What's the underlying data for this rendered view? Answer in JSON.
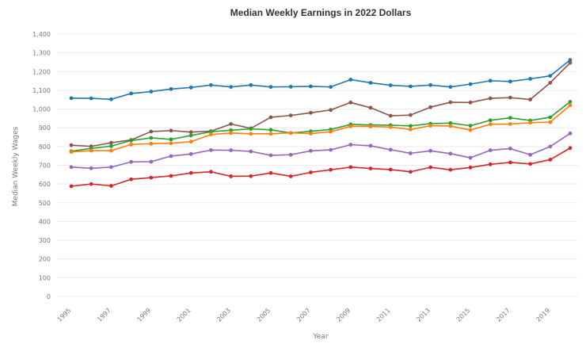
{
  "chart_data": {
    "type": "line",
    "title": "Median Weekly Earnings in 2022 Dollars",
    "xlabel": "Year",
    "ylabel": "Median Weekly Wages",
    "ylim": [
      0,
      1400
    ],
    "yticks": [
      0,
      100,
      200,
      300,
      400,
      500,
      600,
      700,
      800,
      900,
      1000,
      1100,
      1200,
      1300,
      1400
    ],
    "ytick_labels": [
      "0",
      "100",
      "200",
      "300",
      "400",
      "500",
      "600",
      "700",
      "800",
      "900",
      "1,000",
      "1,100",
      "1,200",
      "1,300",
      "1,400"
    ],
    "xlim": [
      1995,
      2020
    ],
    "xticks": [
      1995,
      1997,
      1999,
      2001,
      2003,
      2005,
      2007,
      2009,
      2011,
      2013,
      2015,
      2017,
      2019
    ],
    "grid": true,
    "legend": "none",
    "x": [
      1995,
      1996,
      1997,
      1998,
      1999,
      2000,
      2001,
      2002,
      2003,
      2004,
      2005,
      2006,
      2007,
      2008,
      2009,
      2010,
      2011,
      2012,
      2013,
      2014,
      2015,
      2016,
      2017,
      2018,
      2019,
      2020
    ],
    "series": [
      {
        "color": "#1f77b4",
        "values": [
          1058,
          1057,
          1052,
          1083,
          1093,
          1107,
          1115,
          1128,
          1118,
          1128,
          1118,
          1119,
          1121,
          1118,
          1157,
          1140,
          1127,
          1121,
          1128,
          1118,
          1133,
          1151,
          1147,
          1161,
          1177,
          1262
        ]
      },
      {
        "color": "#8c564b",
        "values": [
          807,
          801,
          820,
          835,
          880,
          885,
          877,
          882,
          920,
          897,
          956,
          966,
          980,
          995,
          1035,
          1007,
          964,
          968,
          1010,
          1036,
          1035,
          1057,
          1061,
          1051,
          1140,
          1247
        ]
      },
      {
        "color": "#2ca02c",
        "values": [
          775,
          790,
          802,
          832,
          846,
          838,
          859,
          879,
          887,
          894,
          889,
          872,
          881,
          891,
          918,
          915,
          914,
          910,
          922,
          925,
          911,
          940,
          953,
          939,
          956,
          1039
        ]
      },
      {
        "color": "#ff7f0e",
        "values": [
          771,
          778,
          778,
          811,
          815,
          817,
          826,
          864,
          872,
          868,
          868,
          873,
          869,
          879,
          908,
          907,
          904,
          891,
          911,
          909,
          888,
          919,
          920,
          927,
          930,
          1020
        ]
      },
      {
        "color": "#9467bd",
        "values": [
          690,
          684,
          690,
          718,
          719,
          749,
          760,
          781,
          780,
          774,
          753,
          756,
          777,
          782,
          810,
          804,
          783,
          764,
          777,
          762,
          740,
          780,
          789,
          756,
          800,
          870
        ]
      },
      {
        "color": "#d62728",
        "values": [
          588,
          600,
          590,
          625,
          634,
          643,
          659,
          665,
          641,
          642,
          659,
          641,
          662,
          676,
          690,
          683,
          677,
          665,
          689,
          676,
          688,
          705,
          715,
          707,
          730,
          792
        ]
      }
    ]
  }
}
